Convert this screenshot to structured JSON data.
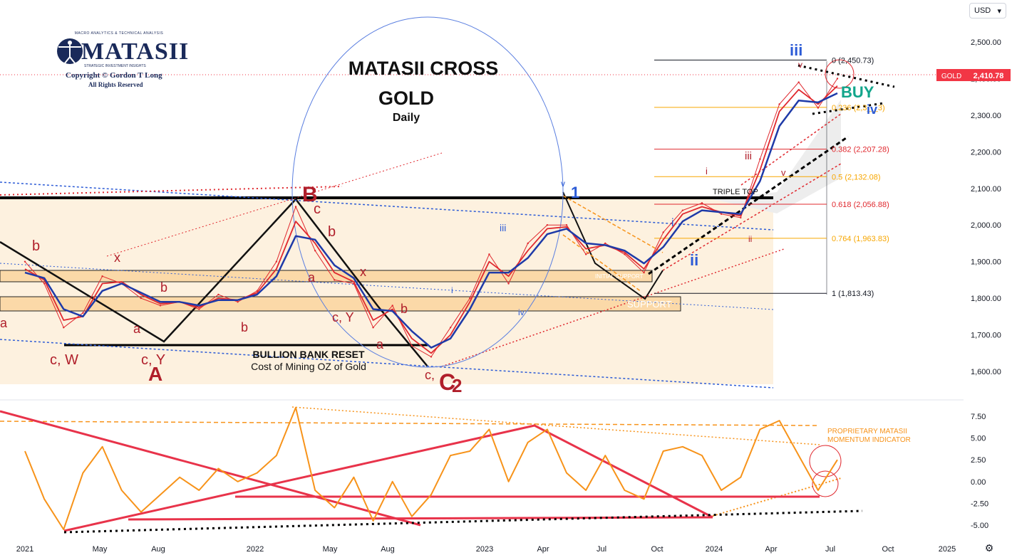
{
  "toolbar": {
    "currency": "USD",
    "settings_icon": "gear-icon"
  },
  "logo": {
    "top_line": "MACRO ANALYTICS & TECHNICAL ANALYSIS",
    "name": "MATASII",
    "sub": "STRATEGIC INVESTMENT INSIGHTS",
    "copyright": "Copyright © Gordon T Long",
    "rights": "All Rights Reserved"
  },
  "chart_data": [
    {
      "type": "line",
      "title": "MATASII CROSS",
      "subtitle": "GOLD",
      "subtitle2": "Daily",
      "symbol": "GOLD",
      "last_price": "2,410.78",
      "price_color": "#f23645",
      "ylim": [
        1550,
        2560
      ],
      "y_ticks": [
        "2,500.00",
        "2,400.00",
        "2,300.00",
        "2,200.00",
        "2,100.00",
        "2,000.00",
        "1,900.00",
        "1,800.00",
        "1,700.00",
        "1,600.00"
      ],
      "x_ticks": [
        "2021",
        "May",
        "Aug",
        "2022",
        "May",
        "Aug",
        "2023",
        "Apr",
        "Jul",
        "Oct",
        "2024",
        "Apr",
        "Jul",
        "Oct",
        "2025"
      ],
      "fibonacci": [
        {
          "ratio": "0",
          "label": "0 (2,450.73)",
          "value": 2450.73,
          "color": "#131722"
        },
        {
          "ratio": "0.236",
          "label": "0.236 (2,3_,_3)",
          "value": 2321.33,
          "color": "#f7a600"
        },
        {
          "ratio": "0.382",
          "label": "0.382 (2,207.28)",
          "value": 2207.28,
          "color": "#e0282e"
        },
        {
          "ratio": "0.5",
          "label": "0.5 (2,132.08)",
          "value": 2132.08,
          "color": "#f7a600"
        },
        {
          "ratio": "0.618",
          "label": "0.618 (2,056.88)",
          "value": 2056.88,
          "color": "#e0282e"
        },
        {
          "ratio": "0.764",
          "label": "0.764 (1,963.83)",
          "value": 1963.83,
          "color": "#f7a600"
        },
        {
          "ratio": "1",
          "label": "1 (1,813.43)",
          "value": 1813.43,
          "color": "#131722"
        }
      ],
      "annotations": {
        "bullion_reset": "BULLION BANK RESET",
        "mining_cost": "Cost of Mining OZ of Gold",
        "initial_support": "INITIAL SUPPORT",
        "support": "SUPPORT",
        "triple_top": "TRIPLE TOP",
        "buy": "BUY"
      },
      "wave_labels_red": [
        "b",
        "x",
        "b",
        "a",
        "a",
        "c, W",
        "c, Y",
        "A",
        "B",
        "c",
        "b",
        "a",
        "x",
        "b",
        "c, Y",
        "a",
        "b",
        "c,",
        "C",
        "2",
        "i",
        "iii",
        "v",
        "ii",
        "v"
      ],
      "wave_labels_blue": [
        "1",
        "iii",
        "i",
        "iv",
        "ii",
        "i",
        "iii",
        "iv",
        "v"
      ],
      "series": [
        {
          "name": "price",
          "color": "#e0282e",
          "x": [
            "2021-01",
            "2021-02",
            "2021-03",
            "2021-04",
            "2021-05",
            "2021-06",
            "2021-07",
            "2021-08",
            "2021-09",
            "2021-10",
            "2021-11",
            "2021-12",
            "2022-01",
            "2022-02",
            "2022-03",
            "2022-04",
            "2022-05",
            "2022-06",
            "2022-07",
            "2022-08",
            "2022-09",
            "2022-10",
            "2022-11",
            "2022-12",
            "2023-01",
            "2023-02",
            "2023-03",
            "2023-04",
            "2023-05",
            "2023-06",
            "2023-07",
            "2023-08",
            "2023-09",
            "2023-10",
            "2023-11",
            "2023-12",
            "2024-01",
            "2024-02",
            "2024-03",
            "2024-04",
            "2024-05",
            "2024-06",
            "2024-07"
          ],
          "values": [
            1900,
            1840,
            1720,
            1760,
            1860,
            1840,
            1800,
            1780,
            1790,
            1770,
            1810,
            1790,
            1820,
            1900,
            2050,
            1930,
            1850,
            1840,
            1720,
            1780,
            1670,
            1640,
            1720,
            1800,
            1920,
            1840,
            1950,
            2000,
            2000,
            1920,
            1950,
            1920,
            1870,
            1980,
            2040,
            2060,
            2030,
            2020,
            2180,
            2330,
            2390,
            2320,
            2400
          ]
        },
        {
          "name": "fast",
          "color": "#e0282e",
          "x": [
            "2021-01",
            "2021-02",
            "2021-03",
            "2021-04",
            "2021-05",
            "2021-06",
            "2021-07",
            "2021-08",
            "2021-09",
            "2021-10",
            "2021-11",
            "2021-12",
            "2022-01",
            "2022-02",
            "2022-03",
            "2022-04",
            "2022-05",
            "2022-06",
            "2022-07",
            "2022-08",
            "2022-09",
            "2022-10",
            "2022-11",
            "2022-12",
            "2023-01",
            "2023-02",
            "2023-03",
            "2023-04",
            "2023-05",
            "2023-06",
            "2023-07",
            "2023-08",
            "2023-09",
            "2023-10",
            "2023-11",
            "2023-12",
            "2024-01",
            "2024-02",
            "2024-03",
            "2024-04",
            "2024-05",
            "2024-06",
            "2024-07"
          ],
          "values": [
            1880,
            1850,
            1740,
            1750,
            1840,
            1845,
            1810,
            1785,
            1790,
            1775,
            1800,
            1795,
            1815,
            1880,
            2010,
            1950,
            1870,
            1845,
            1740,
            1770,
            1690,
            1650,
            1700,
            1790,
            1900,
            1860,
            1930,
            1990,
            1995,
            1935,
            1945,
            1925,
            1880,
            1960,
            2030,
            2050,
            2035,
            2025,
            2150,
            2310,
            2370,
            2330,
            2380
          ]
        },
        {
          "name": "slow",
          "color": "#1e3aa8",
          "x": [
            "2021-01",
            "2021-02",
            "2021-03",
            "2021-04",
            "2021-05",
            "2021-06",
            "2021-07",
            "2021-08",
            "2021-09",
            "2021-10",
            "2021-11",
            "2021-12",
            "2022-01",
            "2022-02",
            "2022-03",
            "2022-04",
            "2022-05",
            "2022-06",
            "2022-07",
            "2022-08",
            "2022-09",
            "2022-10",
            "2022-11",
            "2022-12",
            "2023-01",
            "2023-02",
            "2023-03",
            "2023-04",
            "2023-05",
            "2023-06",
            "2023-07",
            "2023-08",
            "2023-09",
            "2023-10",
            "2023-11",
            "2023-12",
            "2024-01",
            "2024-02",
            "2024-03",
            "2024-04",
            "2024-05",
            "2024-06",
            "2024-07"
          ],
          "values": [
            1870,
            1855,
            1770,
            1750,
            1820,
            1840,
            1815,
            1790,
            1790,
            1780,
            1795,
            1795,
            1810,
            1860,
            1970,
            1960,
            1890,
            1855,
            1770,
            1765,
            1710,
            1665,
            1690,
            1770,
            1870,
            1870,
            1910,
            1975,
            1990,
            1950,
            1945,
            1930,
            1895,
            1940,
            2010,
            2040,
            2035,
            2030,
            2120,
            2270,
            2340,
            2335,
            2360
          ]
        }
      ]
    },
    {
      "type": "line",
      "title": "PROPRIETARY MATASII",
      "subtitle": "MOMENTUM INDICATOR",
      "ylim": [
        -6,
        9
      ],
      "y_ticks": [
        "7.50",
        "5.00",
        "2.50",
        "0.00",
        "-2.50",
        "-5.00"
      ],
      "series": [
        {
          "name": "momentum",
          "color": "#f7931a",
          "x": [
            "2021-01",
            "2021-02",
            "2021-03",
            "2021-04",
            "2021-05",
            "2021-06",
            "2021-07",
            "2021-08",
            "2021-09",
            "2021-10",
            "2021-11",
            "2021-12",
            "2022-01",
            "2022-02",
            "2022-03",
            "2022-04",
            "2022-05",
            "2022-06",
            "2022-07",
            "2022-08",
            "2022-09",
            "2022-10",
            "2022-11",
            "2022-12",
            "2023-01",
            "2023-02",
            "2023-03",
            "2023-04",
            "2023-05",
            "2023-06",
            "2023-07",
            "2023-08",
            "2023-09",
            "2023-10",
            "2023-11",
            "2023-12",
            "2024-01",
            "2024-02",
            "2024-03",
            "2024-04",
            "2024-05",
            "2024-06",
            "2024-07"
          ],
          "values": [
            3.5,
            -2.0,
            -5.5,
            1.0,
            4.0,
            -1.0,
            -3.5,
            -1.5,
            0.5,
            -1.0,
            1.5,
            0.0,
            1.0,
            3.0,
            8.5,
            -1.0,
            -3.0,
            0.5,
            -4.5,
            0.0,
            -4.0,
            -1.5,
            3.0,
            3.5,
            6.0,
            0.0,
            4.5,
            6.0,
            1.0,
            -1.0,
            3.0,
            -1.0,
            -2.0,
            3.5,
            4.0,
            3.0,
            -1.0,
            0.5,
            6.0,
            7.0,
            3.0,
            -1.0,
            2.5
          ]
        }
      ]
    }
  ]
}
